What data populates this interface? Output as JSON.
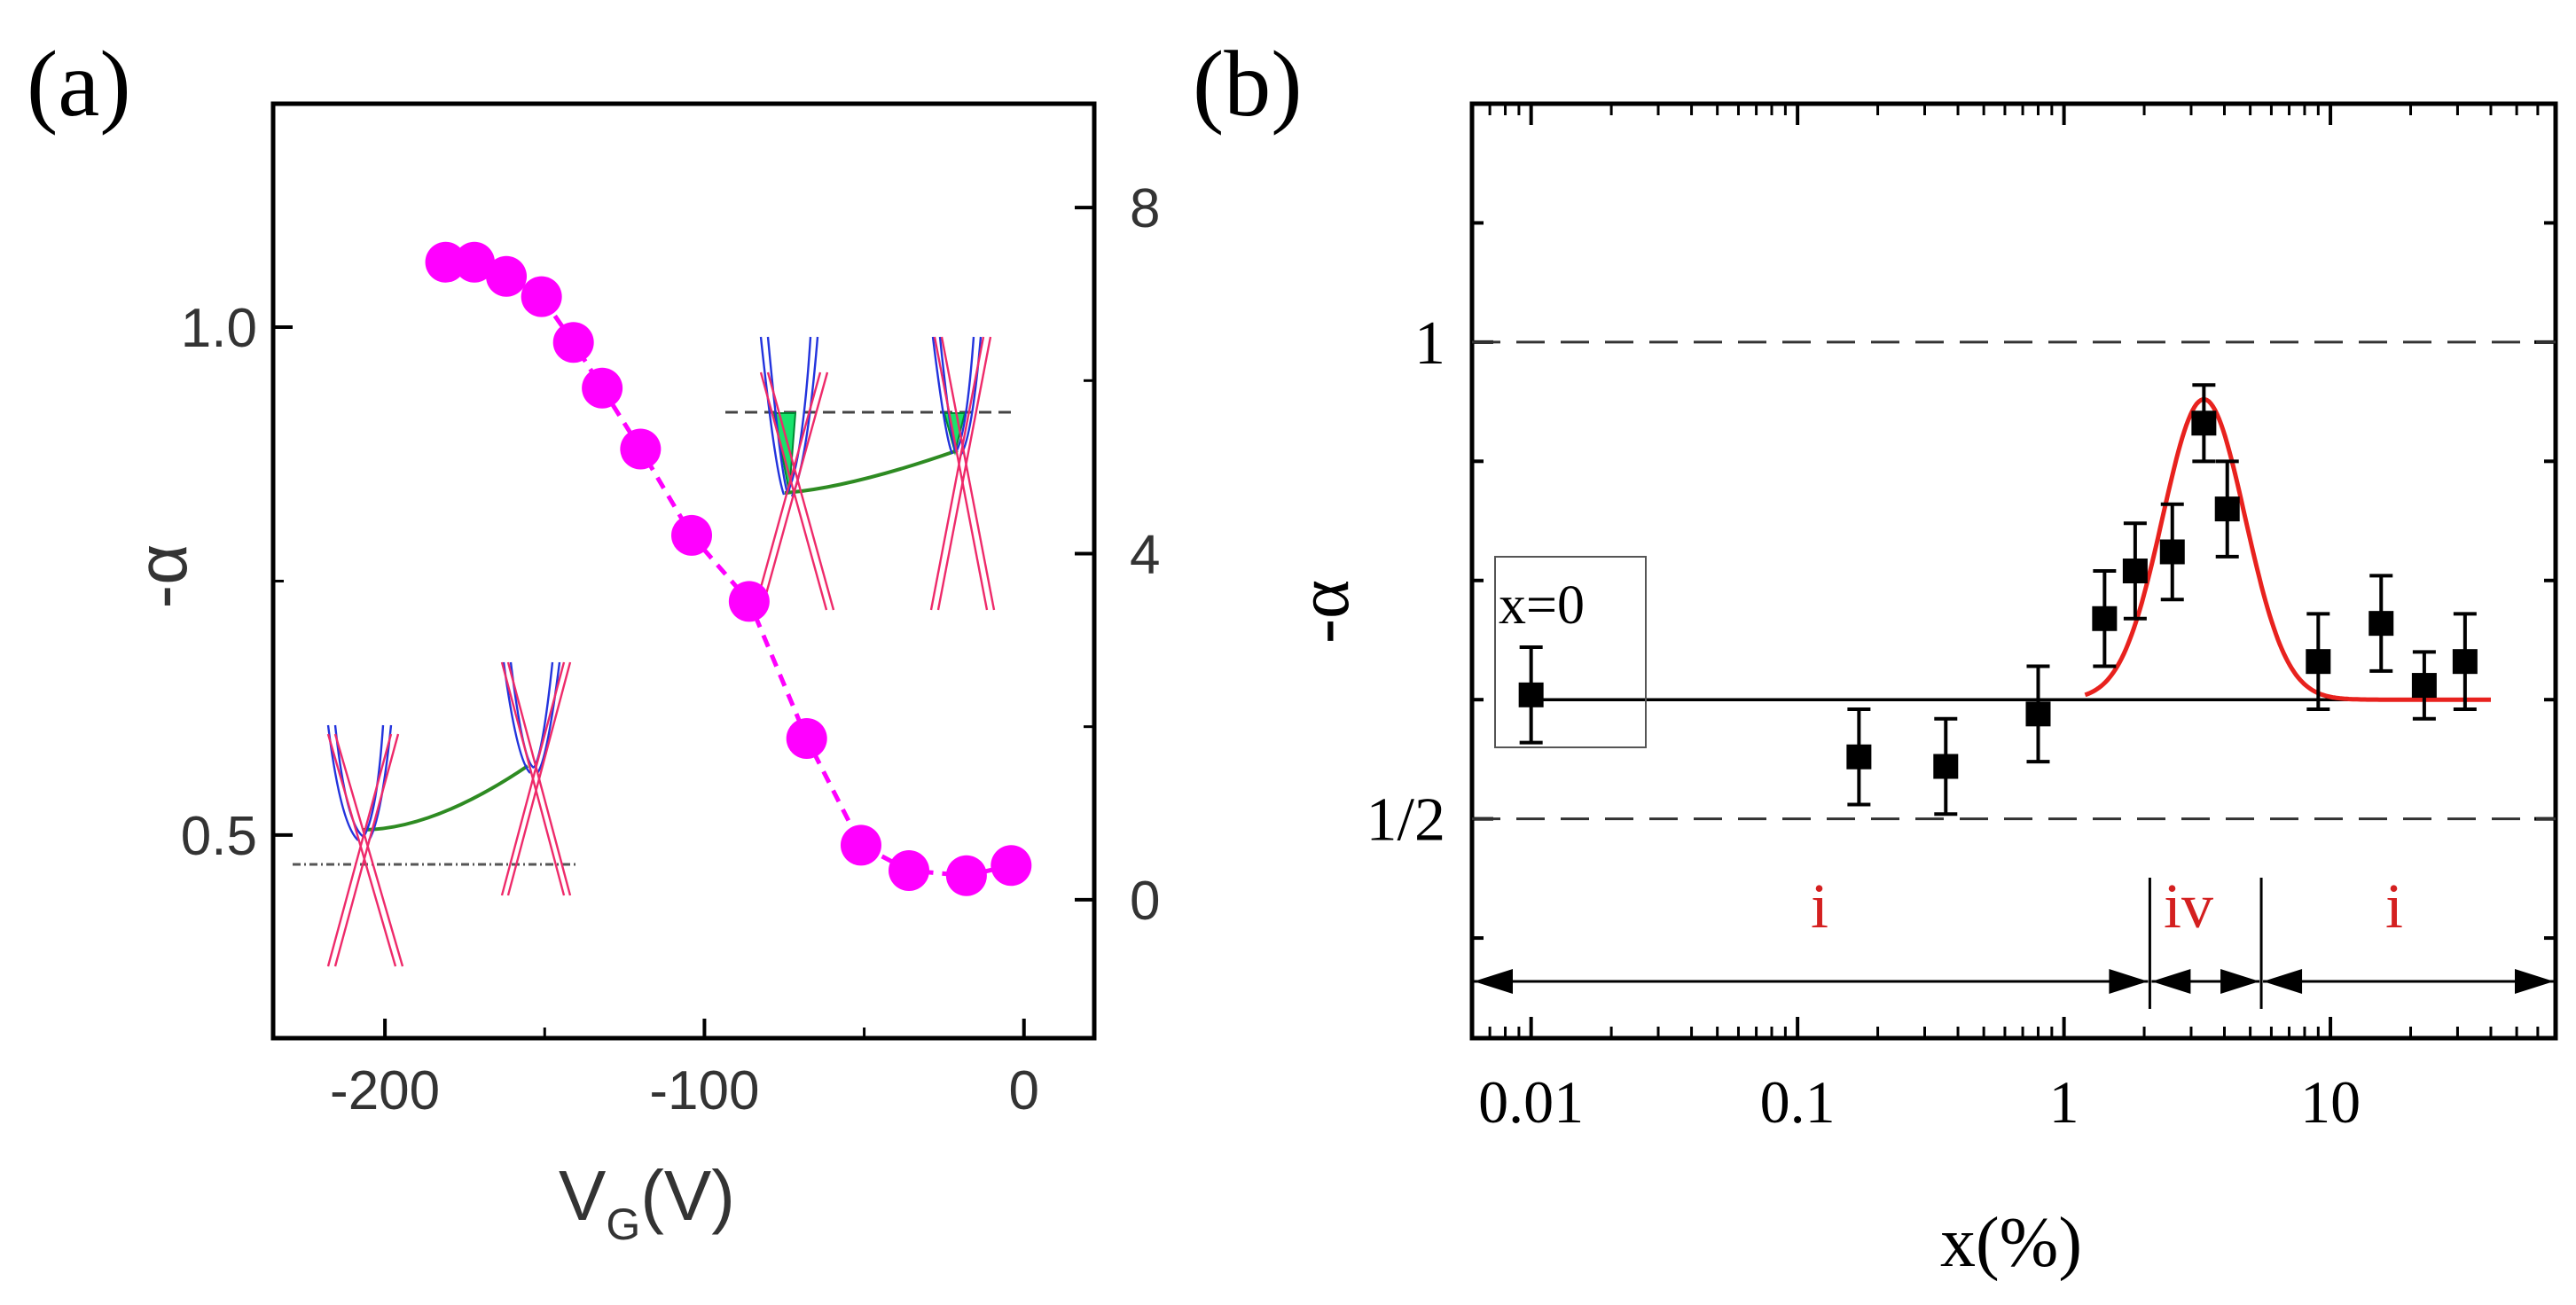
{
  "chart_data": [
    {
      "panel_label": "(a)",
      "type": "scatter",
      "title": "",
      "xlabel": "V",
      "xlabel_sub": "G",
      "xlabel_unit": "(V)",
      "ylabel": "-α",
      "xlim": [
        -235,
        22
      ],
      "ylim": [
        0.3,
        1.22
      ],
      "y2lim": [
        -1.6,
        9.2
      ],
      "x_ticks": [
        -200,
        -100,
        0
      ],
      "x_tick_labels": [
        "-200",
        "-100",
        "0"
      ],
      "y_ticks": [
        0.5,
        1.0
      ],
      "y_tick_labels": [
        "0.5",
        "1.0"
      ],
      "y2_ticks": [
        0,
        4,
        8
      ],
      "y2_tick_labels": [
        "0",
        "4",
        "8"
      ],
      "grid": false,
      "marker_color": "#ff00ff",
      "series": [
        {
          "name": "-alpha",
          "x": [
            -181,
            -172,
            -162,
            -151,
            -141,
            -132,
            -120,
            -104,
            -86,
            -68,
            -51,
            -36,
            -18,
            -4
          ],
          "y": [
            1.064,
            1.064,
            1.05,
            1.03,
            0.985,
            0.94,
            0.88,
            0.795,
            0.73,
            0.595,
            0.49,
            0.465,
            0.46,
            0.47
          ]
        }
      ],
      "insets": [
        "band-diagram-low-doping",
        "band-diagram-high-doping"
      ]
    },
    {
      "panel_label": "(b)",
      "type": "scatter",
      "title": "",
      "xlabel": "x(%)",
      "ylabel": "-α",
      "xscale": "log",
      "xlim": [
        0.006,
        70
      ],
      "ylim": [
        0.27,
        1.25
      ],
      "x_ticks": [
        0.01,
        0.1,
        1,
        10
      ],
      "x_tick_labels": [
        "0.01",
        "0.1",
        "1",
        "10"
      ],
      "y_ticks": [
        0.5,
        1
      ],
      "y_tick_labels": [
        "1/2",
        "1"
      ],
      "grid": false,
      "reference_lines": [
        {
          "y": 1,
          "style": "dashed"
        },
        {
          "y": 0.5,
          "style": "dashed"
        }
      ],
      "baseline": {
        "y": 0.625,
        "x_from": 0.01,
        "x_to": 40
      },
      "series": [
        {
          "name": "data",
          "x": [
            0.01,
            0.17,
            0.36,
            0.8,
            1.42,
            1.85,
            2.55,
            3.35,
            4.1,
            9.0,
            15.5,
            22.5,
            32.0
          ],
          "y": [
            0.63,
            0.565,
            0.555,
            0.61,
            0.71,
            0.76,
            0.78,
            0.915,
            0.825,
            0.665,
            0.705,
            0.64,
            0.665
          ],
          "err": [
            0.05,
            0.05,
            0.05,
            0.05,
            0.05,
            0.05,
            0.05,
            0.04,
            0.05,
            0.05,
            0.05,
            0.035,
            0.05
          ]
        }
      ],
      "fit": {
        "name": "gaussian fit",
        "color": "#e8221e",
        "peak_x": 3.35,
        "peak_y": 0.94,
        "baseline_y": 0.625,
        "width_log10": 0.155,
        "x_range": [
          1.2,
          40
        ]
      },
      "annotation_box": "x=0",
      "regions": [
        {
          "label": "i",
          "x_from": 0.006,
          "x_to": 2.1
        },
        {
          "label": "iv",
          "x_from": 2.1,
          "x_to": 5.5
        },
        {
          "label": "i",
          "x_from": 5.5,
          "x_to": 70
        }
      ],
      "region_color": "#d42020"
    }
  ]
}
